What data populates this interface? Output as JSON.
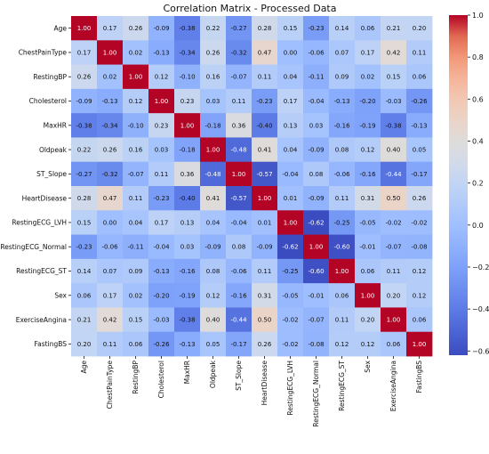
{
  "chart_data": {
    "type": "heatmap",
    "title": "Correlation Matrix - Processed Data",
    "labels": [
      "Age",
      "ChestPainType",
      "RestingBP",
      "Cholesterol",
      "MaxHR",
      "Oldpeak",
      "ST_Slope",
      "HeartDisease",
      "RestingECG_LVH",
      "RestingECG_Normal",
      "RestingECG_ST",
      "Sex",
      "ExerciseAngina",
      "FastingBS"
    ],
    "values": [
      [
        1.0,
        0.17,
        0.26,
        -0.09,
        -0.38,
        0.22,
        -0.27,
        0.28,
        0.15,
        -0.23,
        0.14,
        0.06,
        0.21,
        0.2
      ],
      [
        0.17,
        1.0,
        0.02,
        -0.13,
        -0.34,
        0.26,
        -0.32,
        0.47,
        0.0,
        -0.06,
        0.07,
        0.17,
        0.42,
        0.11
      ],
      [
        0.26,
        0.02,
        1.0,
        0.12,
        -0.1,
        0.16,
        -0.07,
        0.11,
        0.04,
        -0.11,
        0.09,
        0.02,
        0.15,
        0.06
      ],
      [
        -0.09,
        -0.13,
        0.12,
        1.0,
        0.23,
        0.03,
        0.11,
        -0.23,
        0.17,
        -0.04,
        -0.13,
        -0.2,
        -0.03,
        -0.26
      ],
      [
        -0.38,
        -0.34,
        -0.1,
        0.23,
        1.0,
        -0.18,
        0.36,
        -0.4,
        0.13,
        0.03,
        -0.16,
        -0.19,
        -0.38,
        -0.13
      ],
      [
        0.22,
        0.26,
        0.16,
        0.03,
        -0.18,
        1.0,
        -0.48,
        0.41,
        0.04,
        -0.09,
        0.08,
        0.12,
        0.4,
        0.05
      ],
      [
        -0.27,
        -0.32,
        -0.07,
        0.11,
        0.36,
        -0.48,
        1.0,
        -0.57,
        -0.04,
        0.08,
        -0.06,
        -0.16,
        -0.44,
        -0.17
      ],
      [
        0.28,
        0.47,
        0.11,
        -0.23,
        -0.4,
        0.41,
        -0.57,
        1.0,
        0.01,
        -0.09,
        0.11,
        0.31,
        0.5,
        0.26
      ],
      [
        0.15,
        0.0,
        0.04,
        0.17,
        0.13,
        0.04,
        -0.04,
        0.01,
        1.0,
        -0.62,
        -0.25,
        -0.05,
        -0.02,
        -0.02
      ],
      [
        -0.23,
        -0.06,
        -0.11,
        -0.04,
        0.03,
        -0.09,
        0.08,
        -0.09,
        -0.62,
        1.0,
        -0.6,
        -0.01,
        -0.07,
        -0.08
      ],
      [
        0.14,
        0.07,
        0.09,
        -0.13,
        -0.16,
        0.08,
        -0.06,
        0.11,
        -0.25,
        -0.6,
        1.0,
        0.06,
        0.11,
        0.12
      ],
      [
        0.06,
        0.17,
        0.02,
        -0.2,
        -0.19,
        0.12,
        -0.16,
        0.31,
        -0.05,
        -0.01,
        0.06,
        1.0,
        0.2,
        0.12
      ],
      [
        0.21,
        0.42,
        0.15,
        -0.03,
        -0.38,
        0.4,
        -0.44,
        0.5,
        -0.02,
        -0.07,
        0.11,
        0.2,
        1.0,
        0.06
      ],
      [
        0.2,
        0.11,
        0.06,
        -0.26,
        -0.13,
        0.05,
        -0.17,
        0.26,
        -0.02,
        -0.08,
        0.12,
        0.12,
        0.06,
        1.0
      ]
    ],
    "colormap": "coolwarm",
    "vmin": -0.62,
    "vmax": 1.0,
    "colorbar_ticks": [
      "1.0",
      "0.8",
      "0.6",
      "0.4",
      "0.2",
      "0.0",
      "−0.2",
      "−0.4",
      "−0.6"
    ],
    "colorbar_tick_values": [
      1.0,
      0.8,
      0.6,
      0.4,
      0.2,
      0.0,
      -0.2,
      -0.4,
      -0.6
    ],
    "annotations_format": "2 decimals",
    "grid": false,
    "legend": "colorbar-right"
  }
}
